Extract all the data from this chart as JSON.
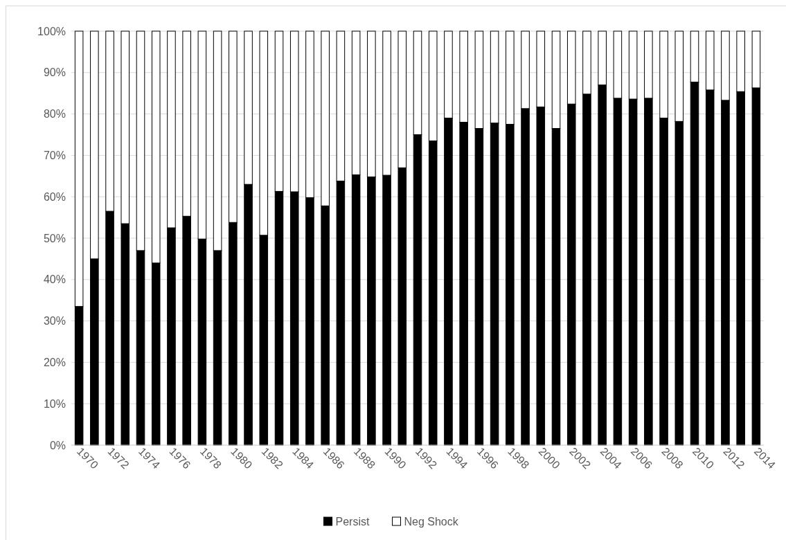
{
  "chart_data": {
    "type": "bar",
    "stacked": true,
    "categories": [
      "1970",
      null,
      "1972",
      null,
      "1974",
      null,
      "1976",
      null,
      "1978",
      null,
      "1980",
      null,
      "1982",
      null,
      "1984",
      null,
      "1986",
      null,
      "1988",
      null,
      "1990",
      null,
      "1992",
      null,
      "1994",
      null,
      "1996",
      null,
      "1998",
      null,
      "2000",
      null,
      "2002",
      null,
      "2004",
      null,
      "2006",
      null,
      "2008",
      null,
      "2010",
      null,
      "2012",
      null,
      "2014"
    ],
    "series": [
      {
        "name": "Persist",
        "color": "#000000",
        "values": [
          33.5,
          45,
          56.5,
          53.5,
          47,
          44,
          52.5,
          55.3,
          49.8,
          47,
          53.8,
          63,
          50.7,
          61.3,
          61.2,
          59.8,
          57.8,
          63.8,
          65.3,
          64.8,
          65.2,
          67,
          75,
          73.5,
          79,
          78,
          76.5,
          77.8,
          77.5,
          81.3,
          81.7,
          76.5,
          82.4,
          84.8,
          87,
          83.8,
          83.6,
          83.8,
          79,
          78.2,
          87.7,
          85.8,
          83.3,
          85.4,
          86.3
        ]
      },
      {
        "name": "Neg Shock",
        "color": "#ffffff",
        "values": [
          66.5,
          55,
          43.5,
          46.5,
          53,
          56,
          47.5,
          44.7,
          50.2,
          53,
          46.2,
          37,
          49.3,
          38.7,
          38.8,
          40.2,
          42.2,
          36.2,
          34.7,
          35.2,
          34.8,
          33,
          25,
          26.5,
          21,
          22,
          23.5,
          22.2,
          22.5,
          18.7,
          18.3,
          23.5,
          17.6,
          15.2,
          13,
          16.2,
          16.4,
          16.2,
          21,
          21.8,
          12.3,
          14.2,
          16.7,
          14.6,
          13.7
        ]
      }
    ],
    "ylim": [
      0,
      100
    ],
    "yticks": [
      {
        "value": 0,
        "label": "0%"
      },
      {
        "value": 10,
        "label": "10%"
      },
      {
        "value": 20,
        "label": "20%"
      },
      {
        "value": 30,
        "label": "30%"
      },
      {
        "value": 40,
        "label": "40%"
      },
      {
        "value": 50,
        "label": "50%"
      },
      {
        "value": 60,
        "label": "60%"
      },
      {
        "value": 70,
        "label": "70%"
      },
      {
        "value": 80,
        "label": "80%"
      },
      {
        "value": 90,
        "label": "90%"
      },
      {
        "value": 100,
        "label": "100%"
      }
    ],
    "grid": "y",
    "legend": "bottom"
  }
}
